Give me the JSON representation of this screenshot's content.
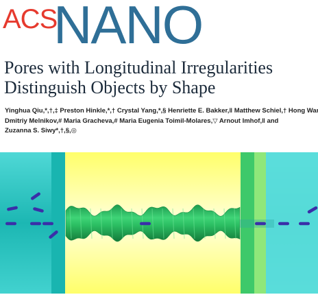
{
  "journal": {
    "logo_acs": "ACS",
    "logo_nano": "NANO"
  },
  "article": {
    "title_line1": "Pores with Longitudinal Irregularities",
    "title_line2": "Distinguish Objects by Shape",
    "authors_line1": "Yinghua Qiu,*,†,‡ Preston Hinkle,*,† Crystal Yang,*,§ Henriette E. Bakker,‖ Matthew Schiel,† Hong Wang,⊥",
    "authors_line2": "Dmitriy Melnikov,# Maria Gracheva,# Maria Eugenia Toimil-Molares,▽ Arnout Imhof,‖ and",
    "authors_line3": "Zuzanna S. Siwy*,†,§,◎"
  },
  "toc_figure": {
    "colors": {
      "reservoir": "#19b5b0",
      "reservoir_light": "#5cdedc",
      "membrane": "#ffff5a",
      "membrane_glow": "#ffffd0",
      "pore": "#2fbe64",
      "pore_dark": "#168a40",
      "band_green": "#3ec96a",
      "band_light": "#8fe77a",
      "particle": "#3a2fa8"
    }
  }
}
